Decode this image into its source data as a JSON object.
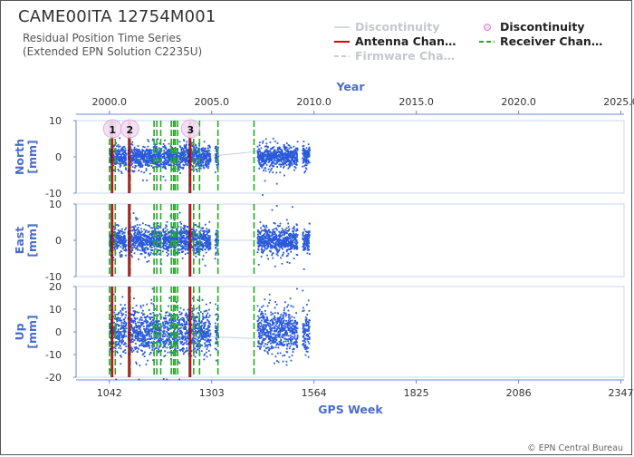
{
  "page": {
    "title": "CAME00ITA 12754M001",
    "subtitle_line1": "Residual Position Time Series",
    "subtitle_line2": "(Extended EPN Solution C2235U)",
    "copyright": "© EPN Central Bureau"
  },
  "legend": {
    "items": [
      {
        "label": "Discontinuity",
        "style": "line",
        "color": "#d0d8e4",
        "dash": false,
        "faded": true
      },
      {
        "label": "Discontinuity",
        "style": "circle",
        "color": "#cc66cc",
        "dash": false,
        "faded": false
      },
      {
        "label": "Antenna Chan…",
        "style": "line",
        "color": "#dd0000",
        "dash": false,
        "faded": false
      },
      {
        "label": "Receiver Chan…",
        "style": "line",
        "color": "#22aa22",
        "dash": true,
        "faded": false
      },
      {
        "label": "Firmware Cha…",
        "style": "line",
        "color": "#c8ccd4",
        "dash": true,
        "faded": true
      }
    ]
  },
  "chart_data": {
    "type": "scatter",
    "x_top": {
      "label": "Year",
      "ticks": [
        "2000.0",
        "2005.0",
        "2010.0",
        "2015.0",
        "2020.0",
        "2025.0"
      ],
      "tick_weeks": [
        1042,
        1303,
        1564,
        1825,
        2086,
        2347
      ]
    },
    "x_bottom": {
      "label": "GPS Week",
      "ticks": [
        "1042",
        "1303",
        "1564",
        "1825",
        "2086",
        "2347"
      ],
      "tick_values": [
        1042,
        1303,
        1564,
        1825,
        2086,
        2347
      ]
    },
    "xlim": [
      957,
      2355
    ],
    "panels": [
      {
        "name": "North",
        "unit": "[mm]",
        "ylim": [
          -10,
          10
        ],
        "ticks": [
          10,
          0,
          -10
        ],
        "spread": 1.6
      },
      {
        "name": "East",
        "unit": "[mm]",
        "ylim": [
          -10,
          10
        ],
        "ticks": [
          10,
          0,
          -10
        ],
        "spread": 1.8
      },
      {
        "name": "Up",
        "unit": "[mm]",
        "ylim": [
          -20,
          20
        ],
        "ticks": [
          20,
          10,
          0,
          -10,
          -20
        ],
        "spread": 5.0
      }
    ],
    "data_segments_weeks": [
      [
        1043,
        1085
      ],
      [
        1090,
        1175
      ],
      [
        1178,
        1218
      ],
      [
        1220,
        1300
      ],
      [
        1312,
        1320
      ],
      [
        1420,
        1522
      ],
      [
        1535,
        1553
      ]
    ],
    "antenna_changes_weeks": [
      1050,
      1094,
      1249
    ],
    "receiver_changes_weeks": [
      1042,
      1057,
      1095,
      1156,
      1163,
      1173,
      1200,
      1206,
      1210,
      1216,
      1257,
      1272,
      1319,
      1411
    ],
    "discontinuities": [
      {
        "label": "1",
        "week": 1050
      },
      {
        "label": "2",
        "week": 1094
      },
      {
        "label": "3",
        "week": 1249
      }
    ]
  }
}
